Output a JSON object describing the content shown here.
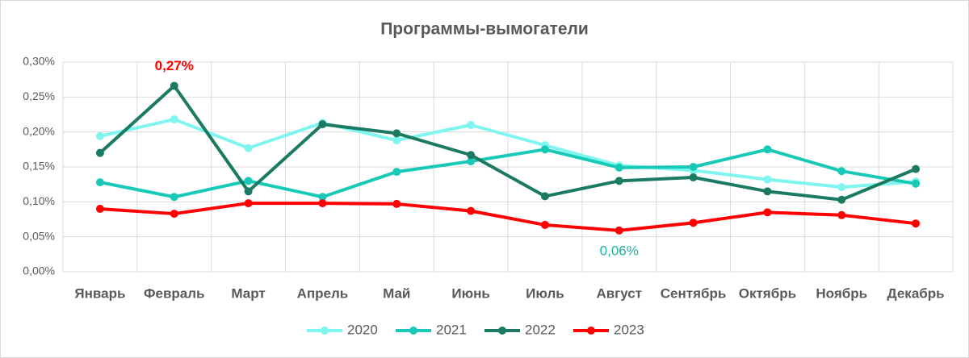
{
  "chart_data": {
    "type": "line",
    "title": "Программы-вымогатели",
    "categories": [
      "Январь",
      "Февраль",
      "Март",
      "Апрель",
      "Май",
      "Июнь",
      "Июль",
      "Август",
      "Сентябрь",
      "Октябрь",
      "Ноябрь",
      "Декабрь"
    ],
    "ylim": [
      0,
      0.3
    ],
    "yticks": [
      {
        "value": 0,
        "label": "0,00%"
      },
      {
        "value": 0.05,
        "label": "0,05%"
      },
      {
        "value": 0.1,
        "label": "0,10%"
      },
      {
        "value": 0.15,
        "label": "0,15%"
      },
      {
        "value": 0.2,
        "label": "0,20%"
      },
      {
        "value": 0.25,
        "label": "0,25%"
      },
      {
        "value": 0.3,
        "label": "0,30%"
      }
    ],
    "grid": true,
    "legend": "bottom",
    "series": [
      {
        "name": "2020",
        "color": "#7ff5f0",
        "values": [
          0.194,
          0.218,
          0.177,
          0.213,
          0.188,
          0.21,
          0.181,
          0.152,
          0.145,
          0.132,
          0.121,
          0.129
        ]
      },
      {
        "name": "2021",
        "color": "#19c9b8",
        "values": [
          0.128,
          0.107,
          0.13,
          0.107,
          0.143,
          0.158,
          0.175,
          0.149,
          0.15,
          0.175,
          0.144,
          0.126
        ]
      },
      {
        "name": "2022",
        "color": "#1a7a62",
        "values": [
          0.17,
          0.266,
          0.115,
          0.211,
          0.198,
          0.167,
          0.108,
          0.13,
          0.135,
          0.115,
          0.103,
          0.147
        ],
        "value_labels": [
          null,
          "0,27%",
          null,
          null,
          null,
          null,
          null,
          null,
          null,
          null,
          null,
          null
        ],
        "value_label_color": "#ff0000"
      },
      {
        "name": "2023",
        "color": "#ff0000",
        "values": [
          0.09,
          0.083,
          0.098,
          0.098,
          0.097,
          0.087,
          0.067,
          0.059,
          0.07,
          0.085,
          0.081,
          0.069
        ],
        "value_labels": [
          null,
          null,
          null,
          null,
          null,
          null,
          null,
          "0,06%",
          null,
          null,
          null,
          null
        ],
        "value_label_color": "#20b2a0"
      }
    ]
  }
}
